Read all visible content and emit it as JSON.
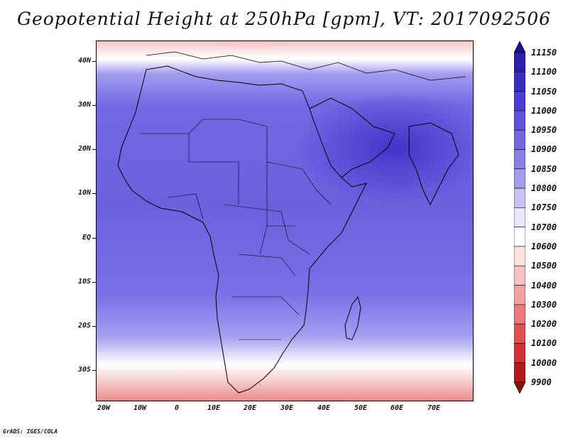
{
  "title": "Geopotential Height at 250hPa [gpm], VT: 2017092506",
  "footer": "GrADS: IGES/COLA",
  "map": {
    "lat_labels": [
      "40N",
      "30N",
      "20N",
      "10N",
      "EQ",
      "10S",
      "20S",
      "30S"
    ],
    "lon_labels": [
      "20W",
      "10W",
      "0",
      "10E",
      "20E",
      "30E",
      "40E",
      "50E",
      "60E",
      "70E"
    ]
  },
  "colorbar": {
    "levels": [
      "11150",
      "11100",
      "11050",
      "11000",
      "10950",
      "10900",
      "10850",
      "10800",
      "10750",
      "10700",
      "10600",
      "10500",
      "10400",
      "10300",
      "10200",
      "10100",
      "10000",
      "9900"
    ],
    "colors": [
      "#1e0f8c",
      "#2a1fa8",
      "#3a2fbe",
      "#4a3fd2",
      "#5e54dc",
      "#7367e4",
      "#8a80ea",
      "#a49df0",
      "#c7c3f6",
      "#e9e7fb",
      "#ffffff",
      "#fde2e2",
      "#f8c2c2",
      "#f2a2a2",
      "#ea7a7a",
      "#e05252",
      "#d43232",
      "#b01a1a",
      "#8a0f0f"
    ]
  }
}
